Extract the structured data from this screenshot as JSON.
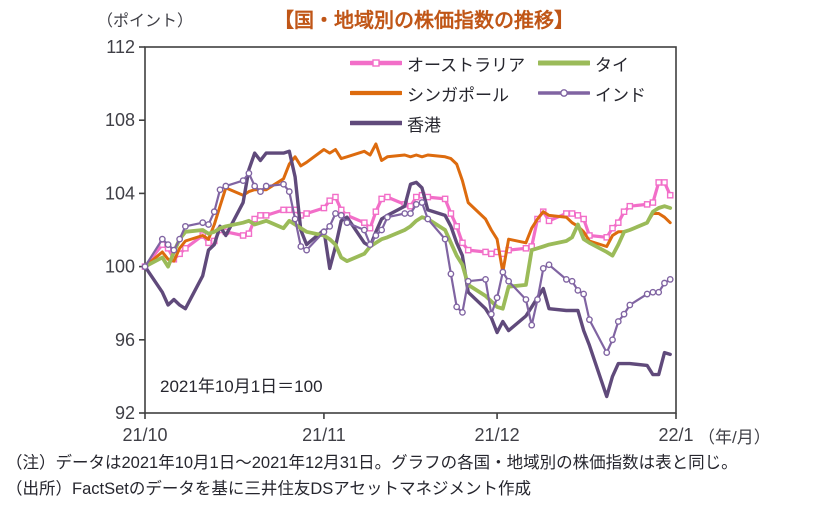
{
  "title": "【国・地域別の株価指数の推移】",
  "title_color": "#C05617",
  "notes": {
    "line1": "（注）データは2021年10月1日～2021年12月31日。グラフの各国・地域別の株価指数は表と同じ。",
    "line2": "（出所）FactSetのデータを基に三井住友DSアセットマネジメント作成"
  },
  "chart_data": {
    "type": "line",
    "title": "【国・地域別の株価指数の推移】",
    "y_unit_label": "（ポイント）",
    "x_unit_label": "（年/月）",
    "annotation": "2021年10月1日＝100",
    "ylim": [
      92,
      112
    ],
    "y_ticks": [
      92,
      96,
      100,
      104,
      108,
      112
    ],
    "x_ticks": [
      {
        "label": "21/10",
        "day": 0
      },
      {
        "label": "21/11",
        "day": 31
      },
      {
        "label": "21/12",
        "day": 61
      },
      {
        "label": "22/1",
        "day": 92
      }
    ],
    "x_range_days": [
      0,
      92
    ],
    "grid": false,
    "legend_position": "top-inside",
    "axis_color": "#404040",
    "tick_label_color": "#3f3f46",
    "day_offsets": [
      0,
      3,
      4,
      5,
      6,
      7,
      10,
      11,
      12,
      13,
      14,
      17,
      18,
      19,
      20,
      21,
      24,
      25,
      26,
      27,
      28,
      31,
      32,
      33,
      34,
      35,
      38,
      39,
      40,
      41,
      42,
      45,
      46,
      47,
      48,
      49,
      52,
      53,
      54,
      55,
      56,
      59,
      60,
      61,
      62,
      63,
      66,
      67,
      68,
      69,
      70,
      73,
      74,
      75,
      76,
      77,
      80,
      81,
      82,
      83,
      84,
      87,
      88,
      89,
      90,
      91
    ],
    "series": [
      {
        "id": "australia",
        "name": "オーストラリア",
        "color": "#F26EC8",
        "marker": "square",
        "width": 3.2,
        "values": [
          100,
          101.2,
          101,
          100.4,
          100.7,
          101,
          101.7,
          101.3,
          101.4,
          102,
          101.9,
          101.7,
          101.8,
          102.6,
          102.8,
          102.8,
          103.1,
          103.1,
          103.1,
          102.8,
          102.9,
          103.2,
          103.6,
          103.8,
          103.1,
          102.8,
          102.4,
          102.1,
          103,
          103.7,
          103.8,
          103.4,
          103.3,
          103.8,
          103.9,
          103.8,
          103.7,
          102.9,
          102.2,
          101.3,
          100.9,
          100.8,
          100.7,
          100.8,
          100.7,
          100.9,
          101,
          101.1,
          102.6,
          103,
          102.5,
          102.9,
          102.9,
          102.8,
          102.6,
          101.7,
          101.6,
          102.1,
          102.4,
          103,
          103.3,
          103.4,
          103.5,
          104.6,
          104.6,
          103.9
        ]
      },
      {
        "id": "singapore",
        "name": "シンガポール",
        "color": "#DD6B0E",
        "marker": "none",
        "width": 3,
        "values": [
          100,
          100.8,
          100.4,
          100.3,
          101,
          101.4,
          101.7,
          101.5,
          102.3,
          103.3,
          104.3,
          103.9,
          104.1,
          104.2,
          104.2,
          104.2,
          104.8,
          105.6,
          106,
          105.5,
          105.7,
          106.4,
          106.2,
          106.4,
          105.9,
          106,
          106.3,
          106.1,
          106.7,
          105.8,
          106,
          106.1,
          106,
          106.1,
          106,
          106.1,
          106,
          105.9,
          105.6,
          104.7,
          103.5,
          102.6,
          102,
          101.5,
          99.7,
          101.5,
          101.3,
          102.1,
          102.6,
          103,
          102.8,
          102.7,
          102.4,
          102.2,
          101.9,
          101.4,
          101.1,
          101.7,
          101.9,
          101.9,
          102,
          102.4,
          102.9,
          102.9,
          102.7,
          102.4
        ]
      },
      {
        "id": "hongkong",
        "name": "香港",
        "color": "#604A7B",
        "marker": "none",
        "width": 3.4,
        "values": [
          100,
          98.6,
          97.9,
          98.2,
          97.9,
          97.7,
          99.5,
          100.9,
          101.2,
          102.2,
          101.7,
          103.5,
          105.3,
          106.2,
          105.8,
          106.2,
          106.2,
          106.3,
          104.9,
          102,
          101.2,
          102,
          99.9,
          101.1,
          102.5,
          102.7,
          101.3,
          101.1,
          101.9,
          102.6,
          102.8,
          103.3,
          104.5,
          104.6,
          104.3,
          103.1,
          102.8,
          102.2,
          101.3,
          100.6,
          98.6,
          97.7,
          97.2,
          96.4,
          97,
          96.5,
          97.3,
          97.8,
          98.3,
          98.8,
          97.7,
          97.6,
          97.6,
          97.6,
          96.5,
          95.7,
          92.9,
          94,
          94.7,
          94.7,
          94.7,
          94.6,
          94.1,
          94.1,
          95.3,
          95.2
        ]
      },
      {
        "id": "thailand",
        "name": "タイ",
        "color": "#9BBB59",
        "marker": "none",
        "width": 3.8,
        "values": [
          100,
          100.5,
          100,
          100.8,
          101.5,
          101.9,
          102,
          101.8,
          101.9,
          102.1,
          102.2,
          102.4,
          102.5,
          102.3,
          102.4,
          102.5,
          102.1,
          102.5,
          102.3,
          102.1,
          101.9,
          101.7,
          101.5,
          101.2,
          100.5,
          100.3,
          100.7,
          101.1,
          101.3,
          101.5,
          101.6,
          102,
          102.2,
          102.5,
          102.7,
          102.6,
          102,
          101.3,
          100.6,
          100.1,
          99,
          98.4,
          98.1,
          97.8,
          97.7,
          98.9,
          99,
          100.9,
          101,
          101.1,
          101.2,
          101.4,
          101.6,
          102.3,
          101.5,
          101.3,
          100.8,
          100.6,
          101.2,
          101.9,
          102,
          102.4,
          103,
          103.2,
          103.3,
          103.2
        ]
      },
      {
        "id": "india",
        "name": "インド",
        "color": "#8064A2",
        "marker": "circle",
        "width": 2.2,
        "values": [
          100,
          101.5,
          101.2,
          100.9,
          101.5,
          102.2,
          102.4,
          102.3,
          103,
          104.2,
          104.4,
          104.7,
          105.1,
          104.4,
          104.1,
          104.4,
          104.5,
          104.1,
          102.6,
          101.1,
          100.9,
          101.9,
          102.2,
          102.9,
          102.8,
          102.4,
          102,
          101.2,
          101.7,
          102,
          102.7,
          102.9,
          102.9,
          103.4,
          103.5,
          102.6,
          101.5,
          99.6,
          97.8,
          97.5,
          99.2,
          99.3,
          97.4,
          98.3,
          99.7,
          99.2,
          98.2,
          96.8,
          98.2,
          99.9,
          100.1,
          99.3,
          99.2,
          98.7,
          98.5,
          97.1,
          95.3,
          96,
          97,
          97.4,
          97.9,
          98.5,
          98.6,
          98.6,
          99.1,
          99.3
        ]
      }
    ],
    "legend_layout": [
      [
        "australia",
        "thailand"
      ],
      [
        "singapore",
        "india"
      ],
      [
        "hongkong"
      ]
    ]
  }
}
